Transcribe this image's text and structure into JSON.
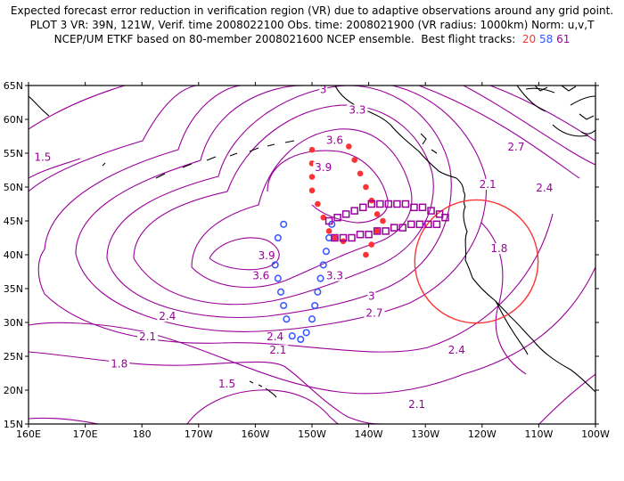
{
  "header": {
    "line1": "Expected forecast error reduction in verification region (VR) due to adaptive observations around any grid point.",
    "line2": "PLOT 3 VR: 39N, 121W, Verif. time 2008022100 Obs. time: 2008021900 (VR radius: 1000km) Norm: u,v,T",
    "line3_prefix": "NCEP/UM ETKF based on 80-member 2008021600 NCEP ensemble.  Best flight tracks:",
    "track_numbers": [
      "20",
      "58",
      "61"
    ]
  },
  "axes": {
    "lat_labels": [
      "65N",
      "60N",
      "55N",
      "50N",
      "45N",
      "40N",
      "35N",
      "30N",
      "25N",
      "20N",
      "15N"
    ],
    "lon_labels": [
      "160E",
      "170E",
      "180",
      "170W",
      "160W",
      "150W",
      "140W",
      "130W",
      "120W",
      "110W",
      "100W"
    ],
    "lon_range": [
      160,
      260
    ],
    "lat_range": [
      15,
      65
    ]
  },
  "colors": {
    "contour": "#990099",
    "coast": "#000000",
    "track_20": "#ff3333",
    "track_58": "#3355ff",
    "track_61": "#990099",
    "verification_region": "#ff3333"
  },
  "contour_labels": [
    {
      "text": "1.5",
      "lon": 162.5,
      "lat": 54
    },
    {
      "text": "3",
      "lon": 212,
      "lat": 64
    },
    {
      "text": "3.3",
      "lon": 218,
      "lat": 61
    },
    {
      "text": "3.6",
      "lon": 214,
      "lat": 56.5
    },
    {
      "text": "3.9",
      "lon": 212,
      "lat": 52.5
    },
    {
      "text": "2.7",
      "lon": 246,
      "lat": 55.5
    },
    {
      "text": "2.4",
      "lon": 251,
      "lat": 49.5
    },
    {
      "text": "2.1",
      "lon": 241,
      "lat": 50
    },
    {
      "text": "1.8",
      "lon": 243,
      "lat": 40.5
    },
    {
      "text": "3.9",
      "lon": 202,
      "lat": 39.5
    },
    {
      "text": "3.6",
      "lon": 201,
      "lat": 36.5
    },
    {
      "text": "3.3",
      "lon": 214,
      "lat": 36.5
    },
    {
      "text": "3",
      "lon": 220.5,
      "lat": 33.5
    },
    {
      "text": "2.7",
      "lon": 221,
      "lat": 31
    },
    {
      "text": "2.4",
      "lon": 184.5,
      "lat": 30.5
    },
    {
      "text": "2.4",
      "lon": 203.5,
      "lat": 27.5
    },
    {
      "text": "2.1",
      "lon": 181,
      "lat": 27.5
    },
    {
      "text": "2.1",
      "lon": 204,
      "lat": 25.5
    },
    {
      "text": "2.4",
      "lon": 235.5,
      "lat": 25.5
    },
    {
      "text": "1.8",
      "lon": 176,
      "lat": 23.5
    },
    {
      "text": "1.5",
      "lon": 195,
      "lat": 20.5
    },
    {
      "text": "2.1",
      "lon": 228.5,
      "lat": 17.5
    }
  ],
  "verification_region": {
    "center_lon": 239,
    "center_lat": 39,
    "radius_lat": 9.1
  },
  "tracks": [
    {
      "name": "20",
      "marker": "dot",
      "points": [
        [
          210,
          55.5
        ],
        [
          210,
          53.5
        ],
        [
          210,
          51.5
        ],
        [
          210,
          49.5
        ],
        [
          211,
          47.5
        ],
        [
          212,
          45.5
        ],
        [
          213,
          43.5
        ],
        [
          214,
          42.5
        ],
        [
          215.5,
          42
        ],
        [
          216.5,
          56
        ],
        [
          217.5,
          54
        ],
        [
          218.5,
          52
        ],
        [
          219.5,
          50
        ],
        [
          220.5,
          48
        ],
        [
          221.5,
          46
        ],
        [
          222.5,
          45
        ],
        [
          221.5,
          43.5
        ],
        [
          220.5,
          41.5
        ],
        [
          219.5,
          40
        ]
      ]
    },
    {
      "name": "58",
      "marker": "circle",
      "points": [
        [
          213.5,
          44.5
        ],
        [
          213,
          42.5
        ],
        [
          212.5,
          40.5
        ],
        [
          212,
          38.5
        ],
        [
          211.5,
          36.5
        ],
        [
          211,
          34.5
        ],
        [
          210.5,
          32.5
        ],
        [
          210,
          30.5
        ],
        [
          209,
          28.5
        ],
        [
          208,
          27.5
        ],
        [
          206.5,
          28
        ],
        [
          205.5,
          30.5
        ],
        [
          205,
          32.5
        ],
        [
          204.5,
          34.5
        ],
        [
          204,
          36.5
        ],
        [
          203.5,
          38.5
        ],
        [
          203,
          40
        ],
        [
          204,
          42.5
        ],
        [
          205,
          44.5
        ]
      ]
    },
    {
      "name": "61",
      "marker": "square",
      "points": [
        [
          213,
          45
        ],
        [
          214.5,
          45.5
        ],
        [
          216,
          46
        ],
        [
          217.5,
          46.5
        ],
        [
          219,
          47
        ],
        [
          220.5,
          47.5
        ],
        [
          222,
          47.5
        ],
        [
          223.5,
          47.5
        ],
        [
          225,
          47.5
        ],
        [
          226.5,
          47.5
        ],
        [
          228,
          47
        ],
        [
          229.5,
          47
        ],
        [
          231,
          46.5
        ],
        [
          232.5,
          46
        ],
        [
          233.5,
          45.5
        ],
        [
          232,
          44.5
        ],
        [
          230.5,
          44.5
        ],
        [
          229,
          44.5
        ],
        [
          227.5,
          44.5
        ],
        [
          226,
          44
        ],
        [
          224.5,
          44
        ],
        [
          223,
          43.5
        ],
        [
          221.5,
          43.5
        ],
        [
          220,
          43
        ],
        [
          218.5,
          43
        ],
        [
          217,
          42.5
        ],
        [
          215.5,
          42.5
        ],
        [
          214,
          42.5
        ]
      ]
    }
  ]
}
